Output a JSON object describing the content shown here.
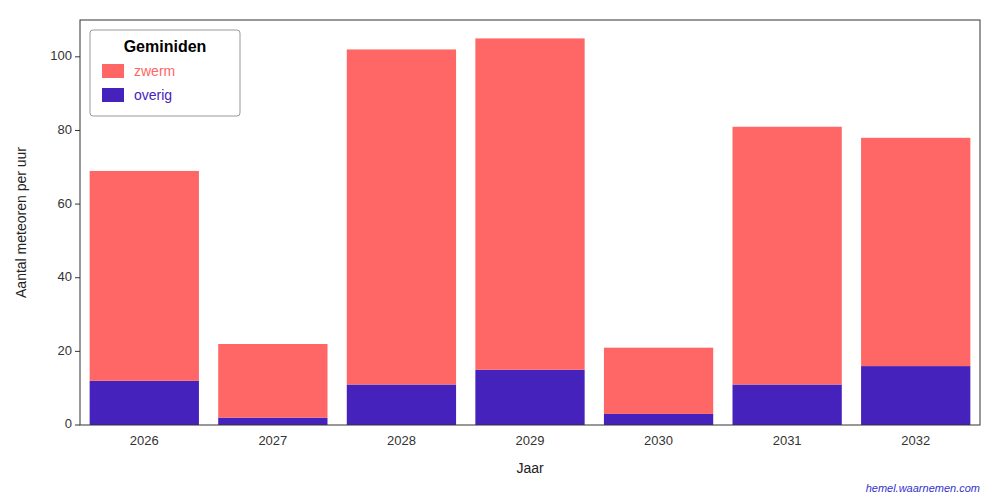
{
  "chart_data": {
    "type": "bar",
    "title": "Geminiden",
    "xlabel": "Jaar",
    "ylabel": "Aantal meteoren per uur",
    "categories": [
      "2026",
      "2027",
      "2028",
      "2029",
      "2030",
      "2031",
      "2032"
    ],
    "series": [
      {
        "name": "overig",
        "color": "#4422BB",
        "values": [
          12,
          2,
          11,
          15,
          3,
          11,
          16
        ]
      },
      {
        "name": "zwerm",
        "color": "#FF6666",
        "values": [
          57,
          20,
          91,
          90,
          18,
          70,
          62
        ]
      }
    ],
    "stacked": true,
    "ylim": [
      0,
      110
    ],
    "yticks": [
      0,
      20,
      40,
      60,
      80,
      100
    ],
    "grid": false,
    "legend": "upper-left",
    "annotations": [
      "hemel.waarnemen.com"
    ]
  }
}
